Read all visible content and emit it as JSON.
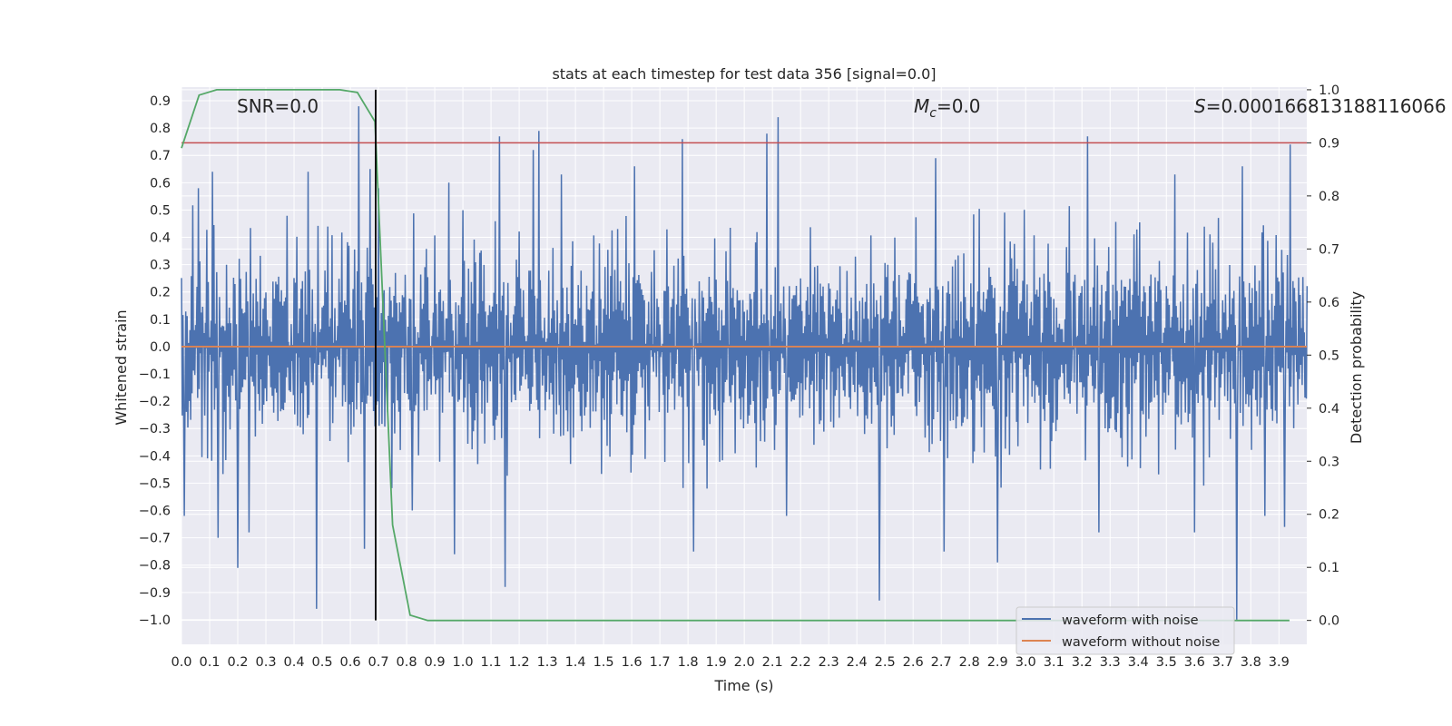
{
  "chart_data": {
    "type": "line",
    "title": "stats at each timestep for test data 356 [signal=0.0]",
    "xlabel": "Time (s)",
    "ylabel": "Whitened strain",
    "y2label": "Detection probability",
    "xlim": [
      0.0,
      3.999
    ],
    "ylim": [
      -1.09,
      0.95
    ],
    "y2lim": [
      -0.045,
      1.005
    ],
    "xticks": [
      "0.0",
      "0.1",
      "0.2",
      "0.3",
      "0.4",
      "0.5",
      "0.6",
      "0.7",
      "0.8",
      "0.9",
      "1.0",
      "1.1",
      "1.2",
      "1.3",
      "1.4",
      "1.5",
      "1.6",
      "1.7",
      "1.8",
      "1.9",
      "2.0",
      "2.1",
      "2.2",
      "2.3",
      "2.4",
      "2.5",
      "2.6",
      "2.7",
      "2.8",
      "2.9",
      "3.0",
      "3.1",
      "3.2",
      "3.3",
      "3.4",
      "3.5",
      "3.6",
      "3.7",
      "3.8",
      "3.9"
    ],
    "yticks": [
      "0.9",
      "0.8",
      "0.7",
      "0.6",
      "0.5",
      "0.4",
      "0.3",
      "0.2",
      "0.1",
      "0.0",
      "−0.1",
      "−0.2",
      "−0.3",
      "−0.4",
      "−0.5",
      "−0.6",
      "−0.7",
      "−0.8",
      "−0.9",
      "−1.0"
    ],
    "y2ticks": [
      "1.0",
      "0.9",
      "0.8",
      "0.7",
      "0.6",
      "0.5",
      "0.4",
      "0.3",
      "0.2",
      "0.1",
      "0.0"
    ],
    "legend_position": "lower-right",
    "grid": true,
    "colors": {
      "background": "#eaeaf2",
      "grid": "#ffffff",
      "noise": "#4c72b0",
      "clean": "#dd8452",
      "probability": "#55a868",
      "threshold": "#c44e52",
      "marker": "#000000"
    },
    "annotations": {
      "snr": "SNR=0.0",
      "mc_symbol": "M",
      "mc_sub": "c",
      "mc_value": "=0.0",
      "s_symbol": "S",
      "s_value": "=0.00016681318811606",
      "s_overflow": "6"
    },
    "threshold_probability": 0.9,
    "marker_time": 0.69,
    "noise_envelope": [
      0.3,
      -0.3
    ],
    "noise_spikes": [
      {
        "x": 0.01,
        "y": -0.62
      },
      {
        "x": 0.06,
        "y": 0.58
      },
      {
        "x": 0.11,
        "y": 0.64
      },
      {
        "x": 0.13,
        "y": -0.7
      },
      {
        "x": 0.2,
        "y": -0.81
      },
      {
        "x": 0.24,
        "y": -0.68
      },
      {
        "x": 0.45,
        "y": 0.64
      },
      {
        "x": 0.48,
        "y": -0.96
      },
      {
        "x": 0.63,
        "y": 0.88
      },
      {
        "x": 0.65,
        "y": -0.74
      },
      {
        "x": 0.67,
        "y": 0.65
      },
      {
        "x": 0.7,
        "y": 0.58
      },
      {
        "x": 0.82,
        "y": -0.6
      },
      {
        "x": 0.95,
        "y": 0.6
      },
      {
        "x": 0.97,
        "y": -0.76
      },
      {
        "x": 1.13,
        "y": 0.77
      },
      {
        "x": 1.15,
        "y": -0.88
      },
      {
        "x": 1.25,
        "y": 0.72
      },
      {
        "x": 1.27,
        "y": 0.79
      },
      {
        "x": 1.35,
        "y": 0.63
      },
      {
        "x": 1.61,
        "y": 0.66
      },
      {
        "x": 1.78,
        "y": 0.76
      },
      {
        "x": 1.82,
        "y": -0.75
      },
      {
        "x": 2.08,
        "y": 0.78
      },
      {
        "x": 2.12,
        "y": 0.84
      },
      {
        "x": 2.15,
        "y": -0.62
      },
      {
        "x": 2.48,
        "y": -0.93
      },
      {
        "x": 2.68,
        "y": 0.69
      },
      {
        "x": 2.71,
        "y": -0.75
      },
      {
        "x": 2.9,
        "y": -0.79
      },
      {
        "x": 3.22,
        "y": 0.77
      },
      {
        "x": 3.26,
        "y": -0.68
      },
      {
        "x": 3.53,
        "y": 0.63
      },
      {
        "x": 3.6,
        "y": -0.68
      },
      {
        "x": 3.75,
        "y": -1.0
      },
      {
        "x": 3.77,
        "y": 0.66
      },
      {
        "x": 3.85,
        "y": -0.62
      },
      {
        "x": 3.92,
        "y": -0.66
      },
      {
        "x": 3.94,
        "y": 0.74
      }
    ],
    "series": [
      {
        "name": "waveform with noise",
        "color": "#4c72b0"
      },
      {
        "name": "waveform without noise",
        "color": "#dd8452",
        "x": [
          0.0,
          3.999
        ],
        "y": [
          0.0,
          0.0
        ]
      },
      {
        "color": "#55a868",
        "x": [
          0.0,
          0.0625,
          0.125,
          0.1875,
          0.25,
          0.3125,
          0.375,
          0.4375,
          0.5,
          0.5625,
          0.625,
          0.6875,
          0.75,
          0.8125,
          0.875,
          0.9375,
          1.5,
          2.0,
          2.5,
          3.0,
          3.5,
          3.9375
        ],
        "y": [
          0.89,
          0.99,
          1.0,
          1.0,
          1.0,
          1.0,
          1.0,
          1.0,
          1.0,
          1.0,
          0.995,
          0.94,
          0.18,
          0.01,
          0.0,
          0.0,
          0.0,
          0.0,
          0.0,
          0.0,
          0.0,
          0.0
        ]
      }
    ]
  }
}
